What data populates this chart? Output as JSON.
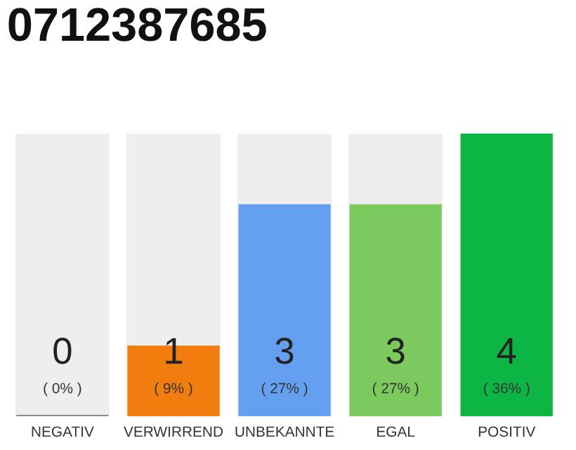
{
  "chart_data": {
    "type": "bar",
    "title": "0712387685",
    "categories": [
      "NEGATIV",
      "VERWIRREND",
      "UNBEKANNTE",
      "EGAL",
      "POSITIV"
    ],
    "values": [
      0,
      1,
      3,
      3,
      4
    ],
    "colors": [
      "#8a8a8a",
      "#f07d0e",
      "#659ff0",
      "#7cc95e",
      "#0db544"
    ],
    "tick_labels": "x",
    "grid": false,
    "data_labels": true,
    "annotations": [
      "( 0% )",
      "( 9% )",
      "( 27% )",
      "( 27% )",
      "( 36% )"
    ]
  }
}
